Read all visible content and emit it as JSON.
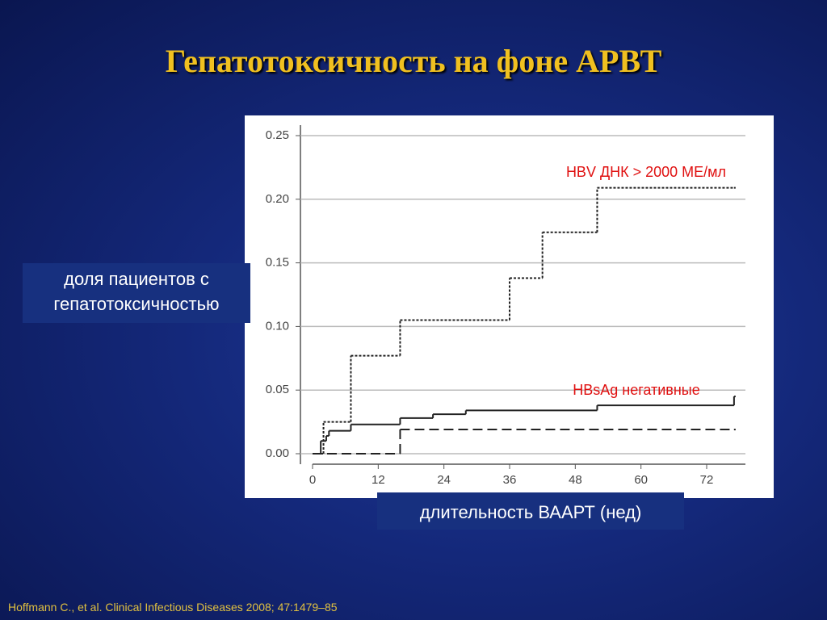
{
  "chart_data": {
    "type": "line",
    "step": "post",
    "title": "Гепатотоксичность на фоне АРВТ",
    "y_label": "доля пациентов с гепатотоксичностью",
    "x_label": "длительность ВААРТ (нед)",
    "citation": "Hoffmann C., et al. Clinical Infectious Diseases 2008; 47:1479–85",
    "xlim": [
      -2,
      80
    ],
    "ylim": [
      -0.005,
      0.26
    ],
    "xticks": [
      0,
      12,
      24,
      36,
      48,
      60,
      72
    ],
    "yticks": [
      {
        "value": 0,
        "label": "0.00"
      },
      {
        "value": 0.05,
        "label": "0.05"
      },
      {
        "value": 0.1,
        "label": "0.10"
      },
      {
        "value": 0.15,
        "label": "0.15"
      },
      {
        "value": 0.2,
        "label": "0.20"
      },
      {
        "value": 0.25,
        "label": "0.25"
      }
    ],
    "grid": true,
    "series": [
      {
        "name": "HBV ДНК > 2000 МЕ/мл",
        "color": "#222222",
        "label_color": "#e01010",
        "dash": "dotted",
        "x": [
          0,
          2,
          7,
          16,
          36,
          42,
          52,
          77
        ],
        "values": [
          0,
          0.025,
          0.077,
          0.105,
          0.138,
          0.174,
          0.209,
          0.209
        ]
      },
      {
        "name": "HBsAg негативные",
        "color": "#222222",
        "label_color": "#e01010",
        "dash": "solid",
        "x": [
          0,
          1.5,
          2.5,
          3,
          7,
          16,
          22,
          28,
          52,
          77
        ],
        "values": [
          0,
          0.01,
          0.014,
          0.018,
          0.023,
          0.028,
          0.031,
          0.034,
          0.038,
          0.045
        ]
      },
      {
        "color": "#222222",
        "dash": "dashed",
        "x": [
          0,
          16,
          77
        ],
        "values": [
          0,
          0.019,
          0.019
        ]
      }
    ]
  }
}
